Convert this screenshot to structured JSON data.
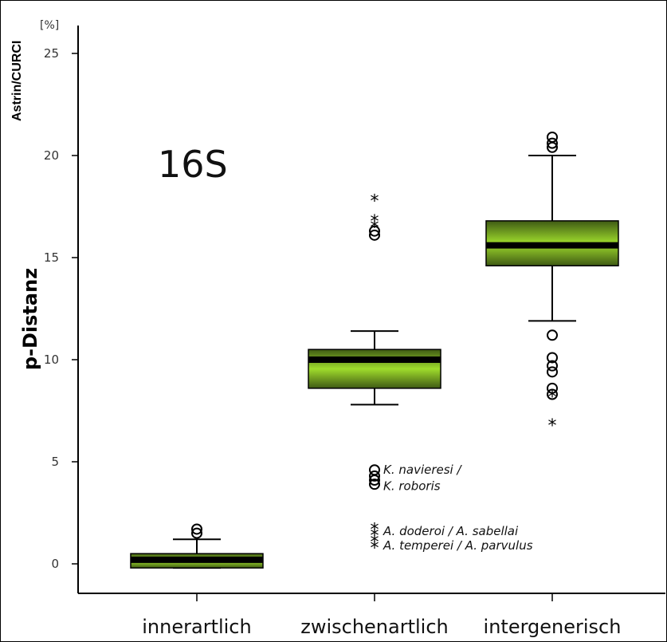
{
  "corner_label": "Astrin/CURCI",
  "chart_data": {
    "type": "boxplot",
    "gene_label": "16S",
    "ylabel": "p-Distanz",
    "unit": "[%]",
    "ylim": [
      -1.4,
      27
    ],
    "yticks": [
      0,
      5,
      10,
      15,
      20,
      25
    ],
    "grid": false,
    "categories": [
      "innerartlich",
      "zwischenartlich",
      "intergenerisch"
    ],
    "boxes": [
      {
        "category": "innerartlich",
        "whisker_low": -0.2,
        "q1": -0.2,
        "median": 0.2,
        "q3": 0.5,
        "whisker_high": 1.2,
        "outliers_circle": [
          1.5,
          1.7
        ],
        "outliers_star": []
      },
      {
        "category": "zwischenartlich",
        "whisker_low": 7.8,
        "q1": 8.6,
        "median": 10.0,
        "q3": 10.5,
        "whisker_high": 11.4,
        "outliers_circle": [
          3.9,
          4.1,
          4.3,
          4.6,
          16.1,
          16.3
        ],
        "outliers_star": [
          0.8,
          1.1,
          1.4,
          1.7,
          16.5,
          16.8,
          17.8
        ]
      },
      {
        "category": "intergenerisch",
        "whisker_low": 11.9,
        "q1": 14.6,
        "median": 15.6,
        "q3": 16.8,
        "whisker_high": 20.0,
        "outliers_circle": [
          8.3,
          8.6,
          9.4,
          9.7,
          10.1,
          11.2,
          20.4,
          20.6,
          20.9
        ],
        "outliers_star": [
          6.8,
          8.2
        ]
      }
    ],
    "annotations": [
      {
        "text": "K. navieresi /",
        "y": 4.6
      },
      {
        "text": "K. roboris",
        "y": 3.8
      },
      {
        "text": "A. doderoi / A. sabellai",
        "y": 1.6
      },
      {
        "text": "A. temperei / A. parvulus",
        "y": 0.9
      }
    ],
    "colors": {
      "box_dark": "#3f5a14",
      "box_light": "#9fdc2c",
      "median": "#000000"
    }
  }
}
